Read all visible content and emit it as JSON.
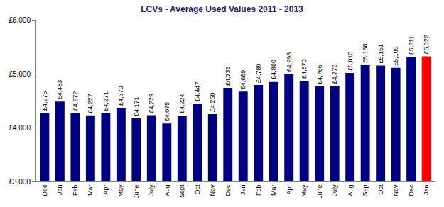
{
  "chart_data": {
    "type": "bar",
    "title": "LCVs - Average Used Values 2011 - 2013",
    "categories": [
      "Dec",
      "Jan",
      "Feb",
      "Mar",
      "Apr",
      "May",
      "June",
      "July",
      "Aug",
      "Sept",
      "Oct",
      "Nov",
      "Dec",
      "Jan",
      "Feb",
      "Mar",
      "Apr",
      "May",
      "June",
      "July",
      "Aug",
      "Sep",
      "Oct",
      "Nov",
      "Dec",
      "Jan"
    ],
    "values": [
      4275,
      4483,
      4272,
      4227,
      4271,
      4370,
      4171,
      4229,
      4075,
      4224,
      4447,
      4250,
      4736,
      4669,
      4789,
      4860,
      4998,
      4870,
      4766,
      4772,
      5013,
      5158,
      5151,
      5109,
      5311,
      5322
    ],
    "value_labels": [
      "£4,275",
      "£4,483",
      "£4,272",
      "£4,227",
      "£4,271",
      "£4,370",
      "£4,171",
      "£4,229",
      "£4,075",
      "£4,224",
      "£4,447",
      "£4,250",
      "£4,736",
      "£4,669",
      "£4,789",
      "£4,860",
      "£4,998",
      "£4,870",
      "£4,766",
      "£4,772",
      "£5,013",
      "£5,158",
      "£5,151",
      "£5,109",
      "£5,311",
      "£5,322"
    ],
    "colors": [
      "#000080",
      "#000080",
      "#000080",
      "#000080",
      "#000080",
      "#000080",
      "#000080",
      "#000080",
      "#000080",
      "#000080",
      "#000080",
      "#000080",
      "#000080",
      "#000080",
      "#000080",
      "#000080",
      "#000080",
      "#000080",
      "#000080",
      "#000080",
      "#000080",
      "#000080",
      "#000080",
      "#000080",
      "#000080",
      "#ff0000"
    ],
    "data_labels": true,
    "grid": false,
    "ylim": [
      3000,
      6000
    ],
    "yticks": [
      {
        "value": 3000,
        "label": "£3,000"
      },
      {
        "value": 4000,
        "label": "£4,000"
      },
      {
        "value": 5000,
        "label": "£5,000"
      },
      {
        "value": 6000,
        "label": "£6,000"
      }
    ]
  }
}
